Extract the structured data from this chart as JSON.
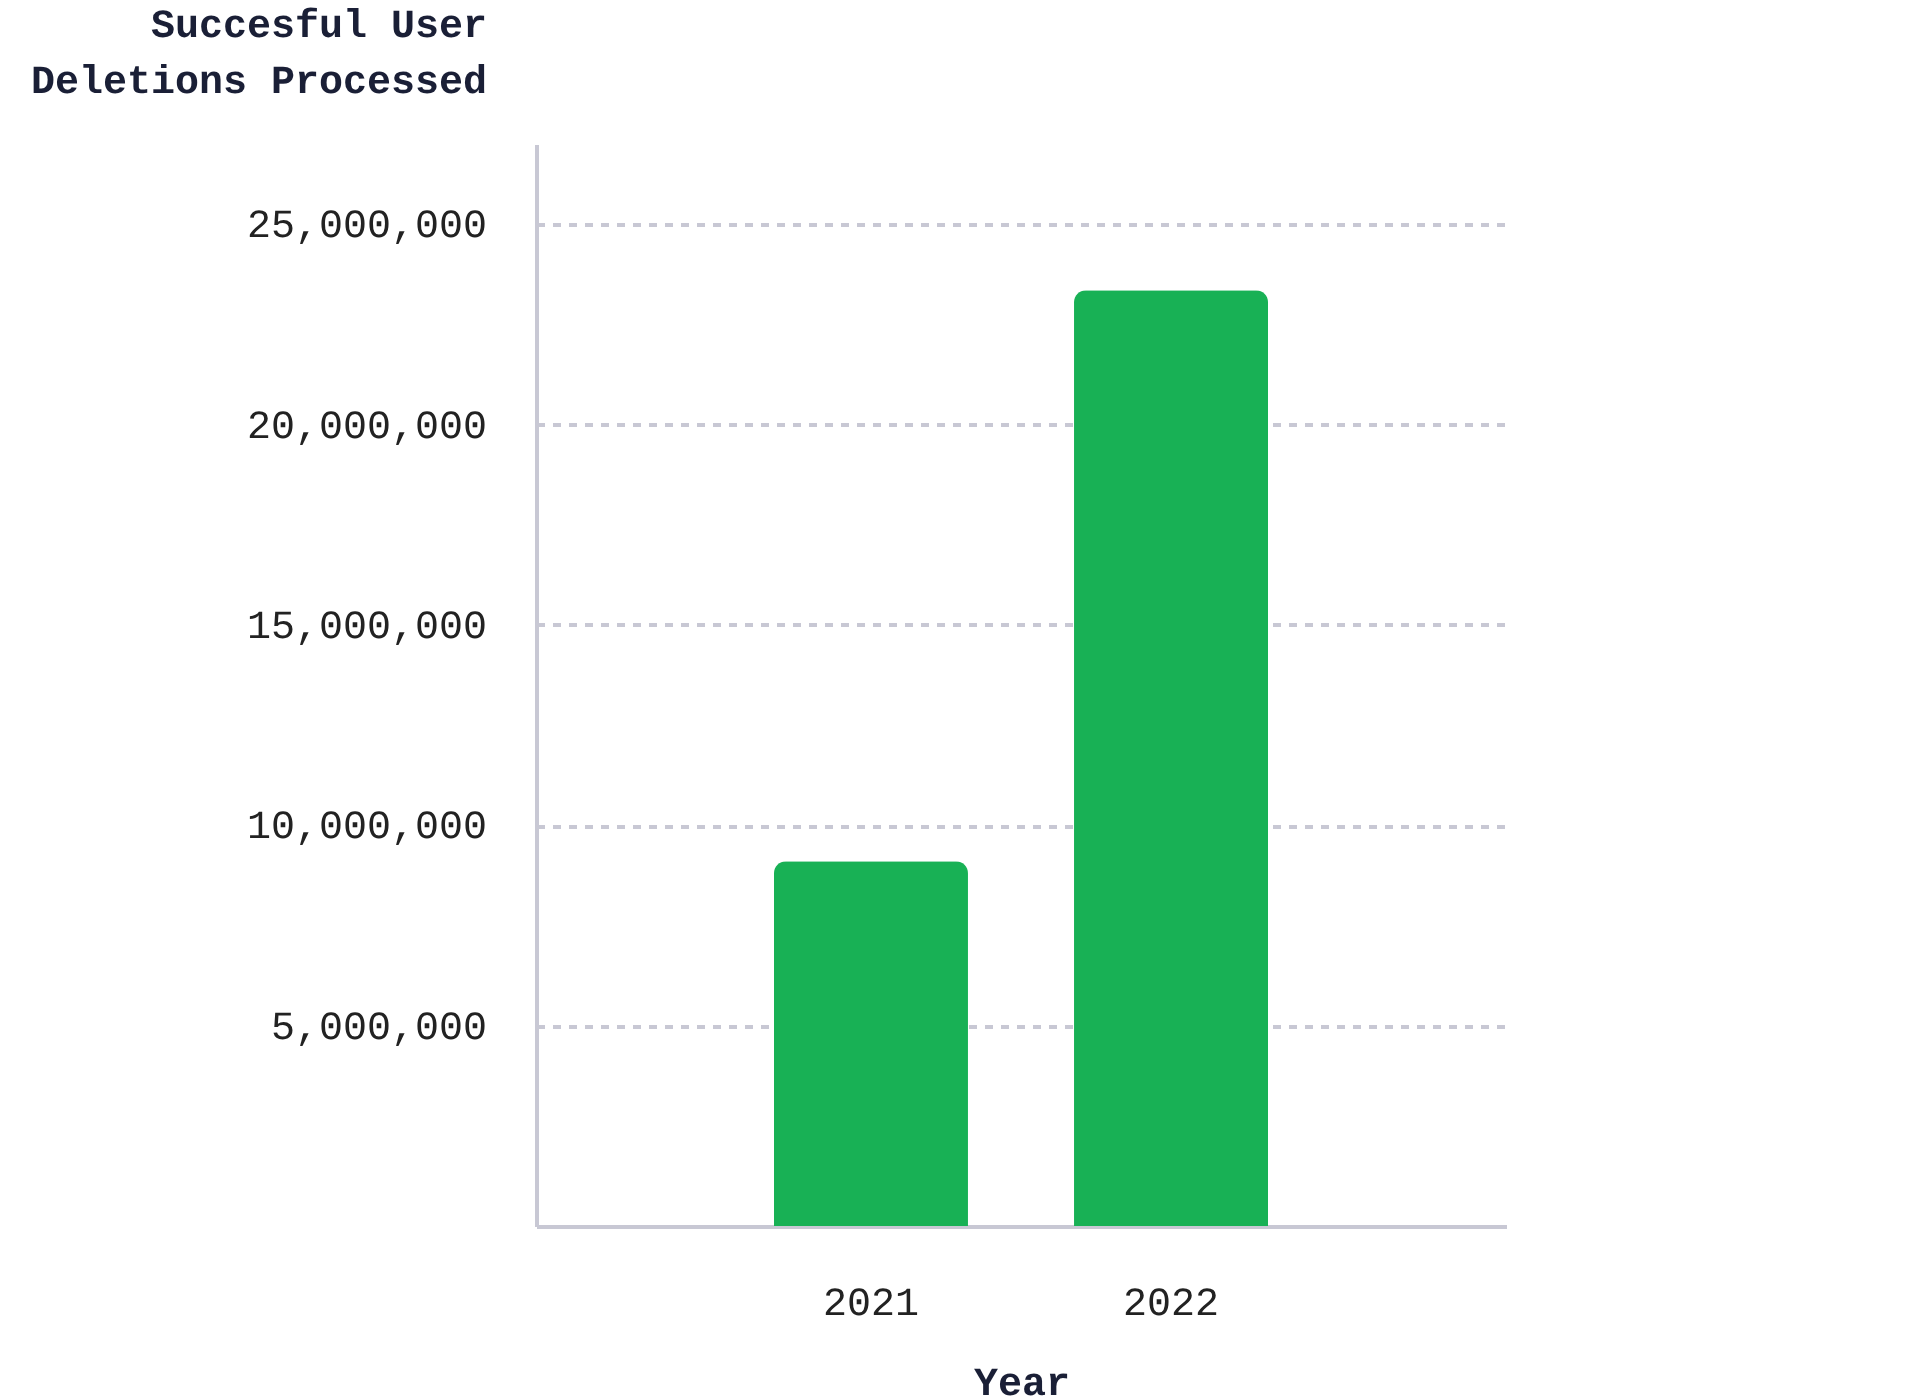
{
  "chart_data": {
    "type": "bar",
    "xlabel": "Year",
    "ylabel": "Succesful User Deletions Processed",
    "categories": [
      "2021",
      "2022"
    ],
    "series": [
      {
        "color": "#18b155",
        "values": [
          9100000,
          23350000
        ]
      }
    ],
    "ylim": [
      0,
      27000000
    ],
    "yticks": [
      {
        "value": 5000000,
        "label": "5,000,000"
      },
      {
        "value": 10000000,
        "label": "10,000,000"
      },
      {
        "value": 15000000,
        "label": "15,000,000"
      },
      {
        "value": 20000000,
        "label": "20,000,000"
      },
      {
        "value": 25000000,
        "label": "25,000,000"
      }
    ],
    "grid": "y"
  }
}
